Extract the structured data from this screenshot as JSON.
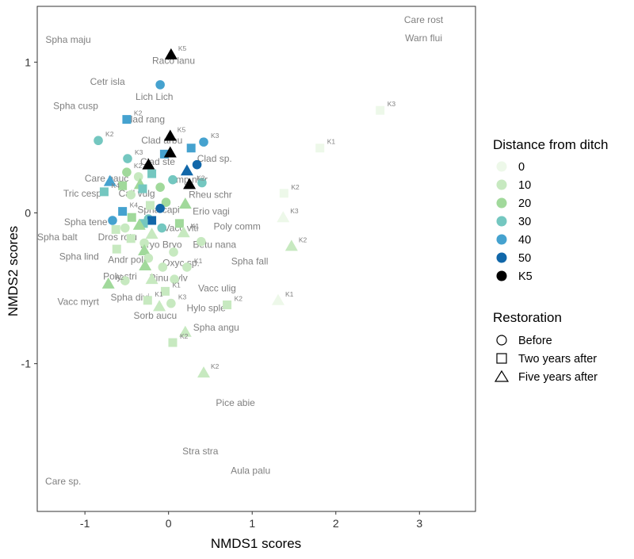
{
  "chart_data": {
    "type": "scatter",
    "xlabel": "NMDS1 scores",
    "ylabel": "NMDS2 scores",
    "xlim": [
      -1.57,
      3.67
    ],
    "ylim": [
      -1.98,
      1.37
    ],
    "xticks": [
      -1,
      0,
      1,
      2,
      3
    ],
    "yticks": [
      -1,
      0,
      1
    ],
    "grid": false,
    "legend_position": "right",
    "legend_distance_title": "Distance from ditch",
    "legend_restoration_title": "Restoration",
    "distance_levels": [
      {
        "label": "0",
        "color": "#edf8e9"
      },
      {
        "label": "10",
        "color": "#c7e9c0"
      },
      {
        "label": "20",
        "color": "#a1d99b"
      },
      {
        "label": "30",
        "color": "#74c7c0"
      },
      {
        "label": "40",
        "color": "#45a2cf"
      },
      {
        "label": "50",
        "color": "#1167a9"
      },
      {
        "label": "K5",
        "color": "#000000"
      }
    ],
    "restoration_levels": [
      {
        "label": "Before",
        "shape": "circle"
      },
      {
        "label": "Two years after",
        "shape": "square"
      },
      {
        "label": "Five years after",
        "shape": "triangle"
      }
    ],
    "species": [
      {
        "label": "Care rost",
        "x": 3.05,
        "y": 1.28
      },
      {
        "label": "Warn flui",
        "x": 3.05,
        "y": 1.16
      },
      {
        "label": "Spha maju",
        "x": -1.2,
        "y": 1.15
      },
      {
        "label": "Racо lanu",
        "x": 0.06,
        "y": 1.01
      },
      {
        "label": "Cetr isla",
        "x": -0.73,
        "y": 0.87
      },
      {
        "label": "Lich Lich",
        "x": -0.17,
        "y": 0.77
      },
      {
        "label": "Spha cusp",
        "x": -1.11,
        "y": 0.71
      },
      {
        "label": "Clad rang",
        "x": -0.29,
        "y": 0.62
      },
      {
        "label": "Clad arbu",
        "x": -0.08,
        "y": 0.48
      },
      {
        "label": "Clad sp.",
        "x": 0.55,
        "y": 0.36
      },
      {
        "label": "Clad ste",
        "x": -0.13,
        "y": 0.34
      },
      {
        "label": "Care pauc",
        "x": -0.74,
        "y": 0.23
      },
      {
        "label": "Emp nigr",
        "x": 0.24,
        "y": 0.22
      },
      {
        "label": "Tric cesp",
        "x": -1.03,
        "y": 0.13
      },
      {
        "label": "Call vulg",
        "x": -0.38,
        "y": 0.13
      },
      {
        "label": "Rheu schr",
        "x": 0.5,
        "y": 0.12
      },
      {
        "label": "Spha capi",
        "x": -0.12,
        "y": 0.02
      },
      {
        "label": "Erio vagi",
        "x": 0.51,
        "y": 0.01
      },
      {
        "label": "Spha tene",
        "x": -0.99,
        "y": -0.06
      },
      {
        "label": "Dros rotu",
        "x": -0.61,
        "y": -0.16
      },
      {
        "label": "Spha balt",
        "x": -1.33,
        "y": -0.16
      },
      {
        "label": "Vacc viti",
        "x": 0.15,
        "y": -0.1
      },
      {
        "label": "Poly comm",
        "x": 0.82,
        "y": -0.09
      },
      {
        "label": "Bryo Bryo",
        "x": -0.09,
        "y": -0.21
      },
      {
        "label": "Betu nana",
        "x": 0.55,
        "y": -0.21
      },
      {
        "label": "Spha lind",
        "x": -1.07,
        "y": -0.29
      },
      {
        "label": "Andr poli",
        "x": -0.5,
        "y": -0.31
      },
      {
        "label": "Spha fall",
        "x": 0.97,
        "y": -0.32
      },
      {
        "label": "Oxyc sp.",
        "x": 0.15,
        "y": -0.33
      },
      {
        "label": "Poly stri",
        "x": -0.58,
        "y": -0.42
      },
      {
        "label": "Pinu sylv",
        "x": 0.0,
        "y": -0.43
      },
      {
        "label": "Vacc ulig",
        "x": 0.58,
        "y": -0.5
      },
      {
        "label": "Spha divi",
        "x": -0.46,
        "y": -0.56
      },
      {
        "label": "Vacc myrt",
        "x": -1.08,
        "y": -0.59
      },
      {
        "label": "Hylo sple",
        "x": 0.45,
        "y": -0.63
      },
      {
        "label": "Sorb aucu",
        "x": -0.16,
        "y": -0.68
      },
      {
        "label": "Spha angu",
        "x": 0.57,
        "y": -0.76
      },
      {
        "label": "Pice abie",
        "x": 0.8,
        "y": -1.26
      },
      {
        "label": "Stra stra",
        "x": 0.38,
        "y": -1.58
      },
      {
        "label": "Aula palu",
        "x": 0.98,
        "y": -1.71
      },
      {
        "label": "Care sp.",
        "x": -1.26,
        "y": -1.78
      }
    ],
    "points": [
      {
        "x": 0.03,
        "y": 1.05,
        "shape": "triangle",
        "level": "K5",
        "label": "K5"
      },
      {
        "x": -0.1,
        "y": 0.85,
        "shape": "circle",
        "level": "40",
        "label": ""
      },
      {
        "x": -0.5,
        "y": 0.62,
        "shape": "square",
        "level": "40",
        "label": "K2"
      },
      {
        "x": 2.53,
        "y": 0.68,
        "shape": "square",
        "level": "0",
        "label": "K3"
      },
      {
        "x": 0.02,
        "y": 0.51,
        "shape": "triangle",
        "level": "K5",
        "label": "K5"
      },
      {
        "x": -0.84,
        "y": 0.48,
        "shape": "circle",
        "level": "30",
        "label": "K2"
      },
      {
        "x": 0.27,
        "y": 0.43,
        "shape": "square",
        "level": "40",
        "label": ""
      },
      {
        "x": 0.42,
        "y": 0.47,
        "shape": "circle",
        "level": "40",
        "label": "K3"
      },
      {
        "x": 1.81,
        "y": 0.43,
        "shape": "square",
        "level": "0",
        "label": "K1"
      },
      {
        "x": -0.05,
        "y": 0.39,
        "shape": "square",
        "level": "40",
        "label": ""
      },
      {
        "x": 0.02,
        "y": 0.4,
        "shape": "triangle",
        "level": "K5",
        "label": ""
      },
      {
        "x": -0.49,
        "y": 0.36,
        "shape": "circle",
        "level": "30",
        "label": "K3"
      },
      {
        "x": -0.24,
        "y": 0.32,
        "shape": "triangle",
        "level": "K5",
        "label": ""
      },
      {
        "x": 0.34,
        "y": 0.32,
        "shape": "circle",
        "level": "50",
        "label": ""
      },
      {
        "x": 0.22,
        "y": 0.28,
        "shape": "triangle",
        "level": "50",
        "label": ""
      },
      {
        "x": -0.2,
        "y": 0.26,
        "shape": "square",
        "level": "30",
        "label": ""
      },
      {
        "x": -0.5,
        "y": 0.27,
        "shape": "circle",
        "level": "20",
        "label": "K2"
      },
      {
        "x": -0.36,
        "y": 0.24,
        "shape": "circle",
        "level": "10",
        "label": ""
      },
      {
        "x": 0.05,
        "y": 0.22,
        "shape": "circle",
        "level": "30",
        "label": ""
      },
      {
        "x": -0.7,
        "y": 0.21,
        "shape": "triangle",
        "level": "40",
        "label": ""
      },
      {
        "x": 0.25,
        "y": 0.19,
        "shape": "triangle",
        "level": "K5",
        "label": "K2"
      },
      {
        "x": -0.34,
        "y": 0.19,
        "shape": "triangle",
        "level": "20",
        "label": ""
      },
      {
        "x": -0.55,
        "y": 0.18,
        "shape": "square",
        "level": "20",
        "label": ""
      },
      {
        "x": -0.1,
        "y": 0.17,
        "shape": "circle",
        "level": "20",
        "label": ""
      },
      {
        "x": -0.31,
        "y": 0.16,
        "shape": "square",
        "level": "30",
        "label": ""
      },
      {
        "x": -0.77,
        "y": 0.14,
        "shape": "square",
        "level": "30",
        "label": "K4"
      },
      {
        "x": 0.4,
        "y": 0.2,
        "shape": "circle",
        "level": "30",
        "label": ""
      },
      {
        "x": -0.45,
        "y": 0.12,
        "shape": "circle",
        "level": "10",
        "label": ""
      },
      {
        "x": 1.38,
        "y": 0.13,
        "shape": "square",
        "level": "0",
        "label": "K2"
      },
      {
        "x": -0.22,
        "y": 0.05,
        "shape": "square",
        "level": "10",
        "label": ""
      },
      {
        "x": -0.03,
        "y": 0.07,
        "shape": "circle",
        "level": "20",
        "label": ""
      },
      {
        "x": 0.2,
        "y": 0.06,
        "shape": "triangle",
        "level": "20",
        "label": ""
      },
      {
        "x": -0.1,
        "y": 0.03,
        "shape": "circle",
        "level": "50",
        "label": ""
      },
      {
        "x": -0.55,
        "y": 0.01,
        "shape": "square",
        "level": "40",
        "label": "K4"
      },
      {
        "x": -0.44,
        "y": -0.03,
        "shape": "square",
        "level": "20",
        "label": ""
      },
      {
        "x": -0.24,
        "y": -0.04,
        "shape": "circle",
        "level": "30",
        "label": ""
      },
      {
        "x": -0.2,
        "y": -0.05,
        "shape": "square",
        "level": "50",
        "label": ""
      },
      {
        "x": -0.3,
        "y": -0.07,
        "shape": "square",
        "level": "30",
        "label": ""
      },
      {
        "x": -0.67,
        "y": -0.05,
        "shape": "circle",
        "level": "40",
        "label": ""
      },
      {
        "x": 0.13,
        "y": -0.07,
        "shape": "square",
        "level": "20",
        "label": ""
      },
      {
        "x": -0.35,
        "y": -0.08,
        "shape": "triangle",
        "level": "20",
        "label": ""
      },
      {
        "x": 1.37,
        "y": -0.03,
        "shape": "triangle",
        "level": "0",
        "label": "K3"
      },
      {
        "x": -0.52,
        "y": -0.1,
        "shape": "circle",
        "level": "10",
        "label": ""
      },
      {
        "x": -0.08,
        "y": -0.1,
        "shape": "circle",
        "level": "30",
        "label": ""
      },
      {
        "x": -0.63,
        "y": -0.11,
        "shape": "square",
        "level": "10",
        "label": ""
      },
      {
        "x": -0.2,
        "y": -0.14,
        "shape": "triangle",
        "level": "10",
        "label": ""
      },
      {
        "x": 0.18,
        "y": -0.13,
        "shape": "triangle",
        "level": "10",
        "label": "K1"
      },
      {
        "x": -0.45,
        "y": -0.17,
        "shape": "square",
        "level": "10",
        "label": ""
      },
      {
        "x": -0.29,
        "y": -0.2,
        "shape": "circle",
        "level": "10",
        "label": ""
      },
      {
        "x": 0.39,
        "y": -0.19,
        "shape": "circle",
        "level": "10",
        "label": ""
      },
      {
        "x": 1.47,
        "y": -0.22,
        "shape": "triangle",
        "level": "10",
        "label": "K2"
      },
      {
        "x": -0.62,
        "y": -0.24,
        "shape": "square",
        "level": "10",
        "label": ""
      },
      {
        "x": -0.29,
        "y": -0.25,
        "shape": "triangle",
        "level": "20",
        "label": ""
      },
      {
        "x": 0.06,
        "y": -0.26,
        "shape": "circle",
        "level": "10",
        "label": ""
      },
      {
        "x": -0.24,
        "y": -0.3,
        "shape": "circle",
        "level": "10",
        "label": ""
      },
      {
        "x": -0.28,
        "y": -0.35,
        "shape": "triangle",
        "level": "20",
        "label": ""
      },
      {
        "x": -0.07,
        "y": -0.36,
        "shape": "circle",
        "level": "10",
        "label": ""
      },
      {
        "x": 0.22,
        "y": -0.36,
        "shape": "circle",
        "level": "10",
        "label": "K1"
      },
      {
        "x": -0.52,
        "y": -0.45,
        "shape": "circle",
        "level": "10",
        "label": ""
      },
      {
        "x": -0.2,
        "y": -0.44,
        "shape": "triangle",
        "level": "10",
        "label": ""
      },
      {
        "x": 0.07,
        "y": -0.44,
        "shape": "circle",
        "level": "10",
        "label": ""
      },
      {
        "x": -0.72,
        "y": -0.47,
        "shape": "triangle",
        "level": "20",
        "label": "K2"
      },
      {
        "x": -0.04,
        "y": -0.52,
        "shape": "square",
        "level": "10",
        "label": "K1"
      },
      {
        "x": -0.25,
        "y": -0.58,
        "shape": "square",
        "level": "10",
        "label": "K1"
      },
      {
        "x": 0.03,
        "y": -0.6,
        "shape": "circle",
        "level": "10",
        "label": "K3"
      },
      {
        "x": -0.11,
        "y": -0.62,
        "shape": "triangle",
        "level": "10",
        "label": ""
      },
      {
        "x": 0.7,
        "y": -0.61,
        "shape": "square",
        "level": "10",
        "label": "K2"
      },
      {
        "x": 1.31,
        "y": -0.58,
        "shape": "triangle",
        "level": "0",
        "label": "K1"
      },
      {
        "x": 0.2,
        "y": -0.79,
        "shape": "triangle",
        "level": "10",
        "label": ""
      },
      {
        "x": 0.05,
        "y": -0.86,
        "shape": "square",
        "level": "10",
        "label": "K2"
      },
      {
        "x": 0.42,
        "y": -1.06,
        "shape": "triangle",
        "level": "10",
        "label": "K2"
      }
    ]
  }
}
